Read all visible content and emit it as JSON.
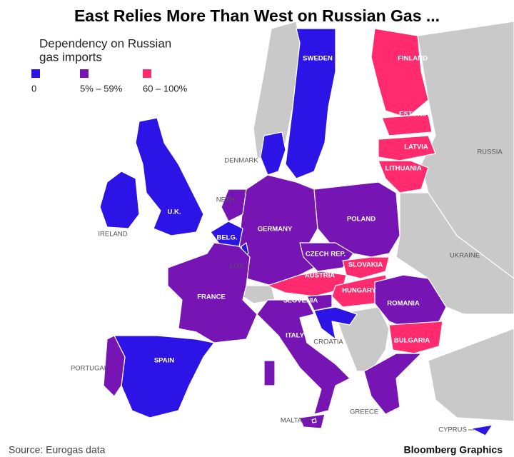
{
  "title": "East Relies More Than West on Russian Gas ...",
  "legend": {
    "title": [
      "Dependency on Russian",
      "gas imports"
    ],
    "items": [
      {
        "label": "0",
        "color": "#2d14e6"
      },
      {
        "label": "5% – 59%",
        "color": "#7614b4"
      },
      {
        "label": "60 – 100%",
        "color": "#ff2b6e"
      }
    ]
  },
  "countries": [
    "SWEDEN",
    "FINLAND",
    "ESTONIA",
    "LATVIA",
    "LITHUANIA",
    "RUSSIA",
    "DENMARK",
    "NETH.",
    "U.K.",
    "IRELAND",
    "GERMANY",
    "POLAND",
    "BELG.",
    "CZECH REP.",
    "UKRAINE",
    "LUX.",
    "SLOVAKIA",
    "AUSTRIA",
    "HUNGARY",
    "FRANCE",
    "SLOVENIA",
    "ROMANIA",
    "ITALY",
    "CROATIA",
    "BULGARIA",
    "PORTUGAL",
    "SPAIN",
    "GREECE",
    "MALTA",
    "CYPRUS"
  ],
  "source": "Source: Eurogas data",
  "brand": "Bloomberg Graphics"
}
